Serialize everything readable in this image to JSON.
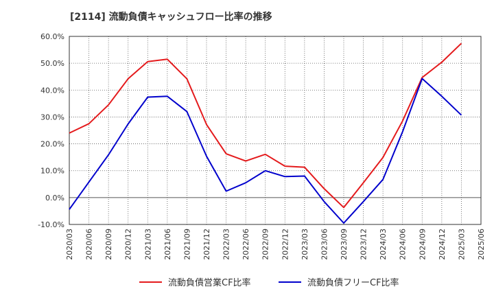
{
  "title": "[2114]  流動負債キャッシュフロー比率の推移",
  "chart_data": {
    "type": "line",
    "title": "[2114]  流動負債キャッシュフロー比率の推移",
    "xlabel": "",
    "ylabel": "",
    "x": [
      "2020/03",
      "2020/06",
      "2020/09",
      "2020/12",
      "2021/03",
      "2021/06",
      "2021/09",
      "2021/12",
      "2022/03",
      "2022/06",
      "2022/09",
      "2022/12",
      "2023/03",
      "2023/06",
      "2023/09",
      "2023/12",
      "2024/03",
      "2024/06",
      "2024/09",
      "2024/12",
      "2025/03",
      "2025/06"
    ],
    "y_ticks": [
      "-10.0%",
      "0.0%",
      "10.0%",
      "20.0%",
      "30.0%",
      "40.0%",
      "50.0%",
      "60.0%"
    ],
    "ylim": [
      -10,
      60
    ],
    "grid": true,
    "legend_position": "bottom",
    "series": [
      {
        "name": "流動負債営業CF比率",
        "color": "#e41a1c",
        "values": [
          24.0,
          27.5,
          34.5,
          44.2,
          50.6,
          51.5,
          44.2,
          27.2,
          16.3,
          13.6,
          16.1,
          11.7,
          11.3,
          3.3,
          -3.7,
          5.5,
          14.9,
          28.5,
          44.7,
          50.4,
          57.4,
          null
        ]
      },
      {
        "name": "流動負債フリーCF比率",
        "color": "#0000cc",
        "values": [
          -4.4,
          5.8,
          15.9,
          27.4,
          37.4,
          37.7,
          32.0,
          15.4,
          2.4,
          5.5,
          10.0,
          7.8,
          8.0,
          -1.5,
          -9.5,
          -1.5,
          6.7,
          24.5,
          44.3,
          37.7,
          30.7,
          null
        ]
      }
    ]
  }
}
